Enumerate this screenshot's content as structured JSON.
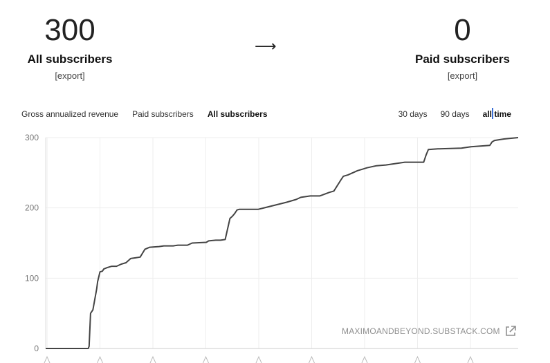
{
  "stats": {
    "all": {
      "value": "300",
      "label": "All subscribers",
      "export_label": "[export]"
    },
    "paid": {
      "value": "0",
      "label": "Paid subscribers",
      "export_label": "[export]"
    },
    "arrow": "⟶"
  },
  "metric_tabs": [
    {
      "label": "Gross annualized revenue",
      "active": false
    },
    {
      "label": "Paid subscribers",
      "active": false
    },
    {
      "label": "All subscribers",
      "active": true
    }
  ],
  "range_tabs": [
    {
      "label": "30 days",
      "active": false
    },
    {
      "label": "90 days",
      "active": false
    },
    {
      "label": "all time",
      "active": true
    }
  ],
  "watermark": "MAXIMOANDBEYOND.SUBSTACK.COM",
  "watermark_icon": "external-link-icon",
  "colors": {
    "line": "#444444",
    "grid": "#eeeeee",
    "tick": "#777777",
    "cursor": "#3b6fd6"
  },
  "chart_data": {
    "type": "line",
    "title": "",
    "xlabel": "",
    "ylabel": "",
    "ylim": [
      0,
      300
    ],
    "yticks": [
      0,
      100,
      200,
      300
    ],
    "x_tick_labels_visible": false,
    "x_tick_count": 9,
    "grid": true,
    "series": [
      {
        "x": [
          0,
          0.09,
          0.092,
          0.095,
          0.1,
          0.108,
          0.11,
          0.115,
          0.12,
          0.123,
          0.13,
          0.135,
          0.14,
          0.15,
          0.16,
          0.17,
          0.18,
          0.19,
          0.2,
          0.21,
          0.22,
          0.24,
          0.25,
          0.26,
          0.265,
          0.27,
          0.28,
          0.3,
          0.31,
          0.34,
          0.345,
          0.36,
          0.37,
          0.38,
          0.39,
          0.395,
          0.4,
          0.405,
          0.41,
          0.42,
          0.44,
          0.45,
          0.51,
          0.515,
          0.53,
          0.54,
          0.56,
          0.58,
          0.6,
          0.61,
          0.625,
          0.63,
          0.64,
          0.66,
          0.67,
          0.68,
          0.7,
          0.72,
          0.74,
          0.76,
          0.8,
          0.805,
          0.81,
          0.83,
          0.88,
          0.9,
          0.94,
          0.945,
          0.95,
          0.97,
          1.0
        ],
        "y": [
          0,
          0,
          3,
          50,
          55,
          85,
          95,
          109,
          110,
          113,
          115,
          116,
          117,
          117,
          120,
          122,
          128,
          129,
          130,
          141,
          144,
          145,
          146,
          146,
          146,
          146,
          147,
          147,
          150,
          151,
          153,
          154,
          154,
          155,
          185,
          188,
          192,
          197,
          198,
          198,
          198,
          198,
          208,
          209,
          212,
          215,
          217,
          217,
          222,
          224,
          240,
          245,
          247,
          253,
          255,
          257,
          260,
          261,
          263,
          265,
          265,
          275,
          283,
          284,
          285,
          287,
          289,
          294,
          296,
          298,
          300
        ]
      }
    ]
  }
}
